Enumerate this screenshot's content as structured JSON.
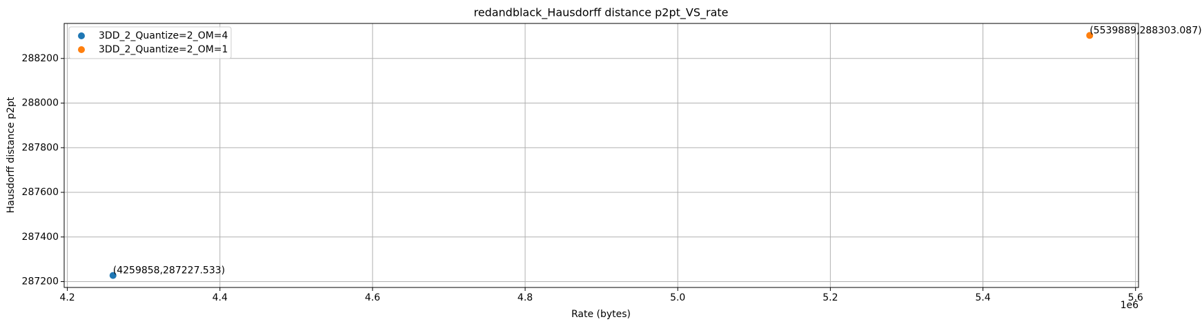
{
  "chart_data": {
    "type": "scatter",
    "title": "redandblack_Hausdorff distance p2pt_VS_rate",
    "x_label": "Rate (bytes)",
    "y_label": "Hausdorff distance p2pt",
    "x_offset_label": "1e6",
    "series": [
      {
        "name": "3DD_2_Quantize=2_OM=4",
        "color": "#1f77b4",
        "x": [
          4259858
        ],
        "values": [
          287227.533
        ],
        "value_labels": [
          "(4259858,287227.533)"
        ]
      },
      {
        "name": "3DD_2_Quantize=2_OM=1",
        "color": "#ff7f0e",
        "x": [
          5539889
        ],
        "values": [
          288303.087
        ],
        "value_labels": [
          "(5539889,288303.087)"
        ]
      }
    ],
    "xlim": [
      4195857,
      5603890
    ],
    "ylim": [
      287173.76,
      288356.87
    ],
    "xticks": [
      {
        "value": 4200000,
        "label": "4.2"
      },
      {
        "value": 4400000,
        "label": "4.4"
      },
      {
        "value": 4600000,
        "label": "4.6"
      },
      {
        "value": 4800000,
        "label": "4.8"
      },
      {
        "value": 5000000,
        "label": "5.0"
      },
      {
        "value": 5200000,
        "label": "5.2"
      },
      {
        "value": 5400000,
        "label": "5.4"
      },
      {
        "value": 5600000,
        "label": "5.6"
      }
    ],
    "yticks": [
      287200,
      287400,
      287600,
      287800,
      288000,
      288200
    ],
    "grid": true,
    "legend": "upper-left"
  }
}
